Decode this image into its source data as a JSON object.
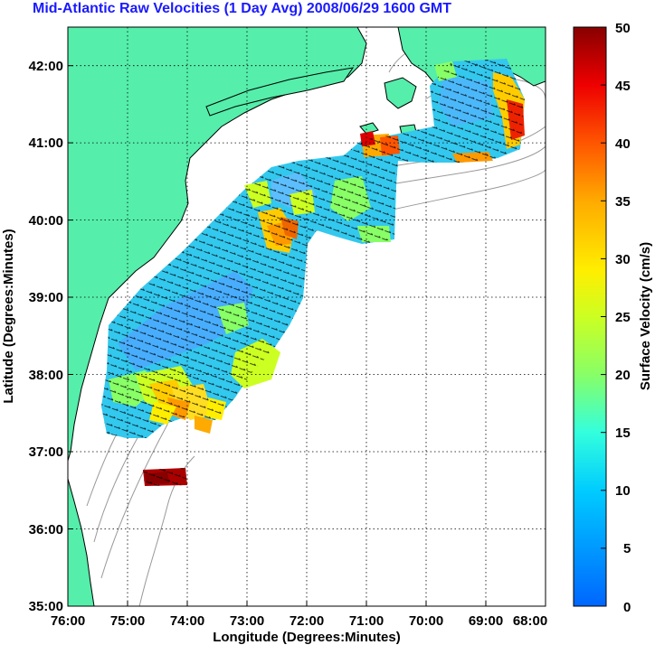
{
  "title": "Mid-Atlantic Raw Velocities (1 Day Avg) 2008/06/29 1600 GMT",
  "xlabel": "Longitude (Degrees:Minutes)",
  "ylabel": "Latitude (Degrees:Minutes)",
  "colorbar_label": "Surface Velocity (cm/s)",
  "x_ticks": [
    "76:00",
    "75:00",
    "74:00",
    "73:00",
    "72:00",
    "71:00",
    "70:00",
    "69:00",
    "68:00"
  ],
  "y_ticks": [
    "42:00",
    "41:00",
    "40:00",
    "39:00",
    "38:00",
    "37:00",
    "36:00",
    "35:00"
  ],
  "colorbar_ticks": [
    "50",
    "45",
    "40",
    "35",
    "30",
    "25",
    "20",
    "15",
    "10",
    "5",
    "0"
  ],
  "colors": {
    "land": "#55eeaa",
    "coast": "#000000",
    "bathymetry": "#999999",
    "grid": "#000000",
    "title": "#1a1aff"
  },
  "map_extent": {
    "lon_range": [
      -76,
      -68
    ],
    "lat_range": [
      35,
      42.5
    ]
  },
  "chart_data": {
    "type": "heatmap",
    "title": "Mid-Atlantic Raw Velocities (1 Day Avg) 2008/06/29 1600 GMT",
    "xlabel": "Longitude (Degrees:Minutes)",
    "ylabel": "Latitude (Degrees:Minutes)",
    "colorbar": {
      "label": "Surface Velocity (cm/s)",
      "range": [
        0,
        50
      ],
      "colormap": "jet"
    },
    "grid": true
  }
}
